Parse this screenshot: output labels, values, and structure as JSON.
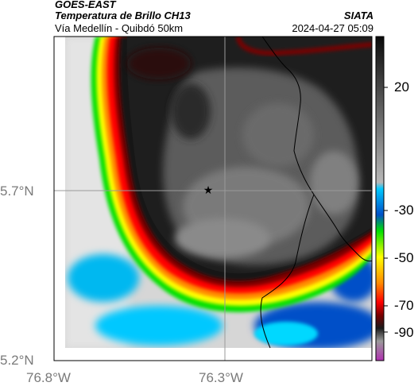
{
  "header": {
    "satellite": "GOES-EAST",
    "title": "Temperatura de Brillo CH13",
    "subtitle": "Vía Medellín - Quibdó 50km",
    "organization": "SIATA",
    "datetime": "2024-04-27 05:09"
  },
  "axes": {
    "lat_labels": [
      "5.7°N",
      "5.2°N"
    ],
    "lon_labels": [
      "76.8°W",
      "76.3°W"
    ]
  },
  "colorbar": {
    "tick_labels": [
      "20",
      "-30",
      "-50",
      "-70",
      "-90"
    ],
    "colors": [
      "#0a0a0a",
      "#8a8a8a",
      "#00c8ff",
      "#00e000",
      "#ffff00",
      "#ff0000",
      "#7a0000",
      "#9b2f9b"
    ]
  },
  "map_features": {
    "center_marker": "star-icon",
    "colors": {
      "cloud_top_cold": "#1a1a1a",
      "cloud_ring": "#ff1a00",
      "warm_surface": "#d9d9d9",
      "border_line": "#000000"
    }
  }
}
